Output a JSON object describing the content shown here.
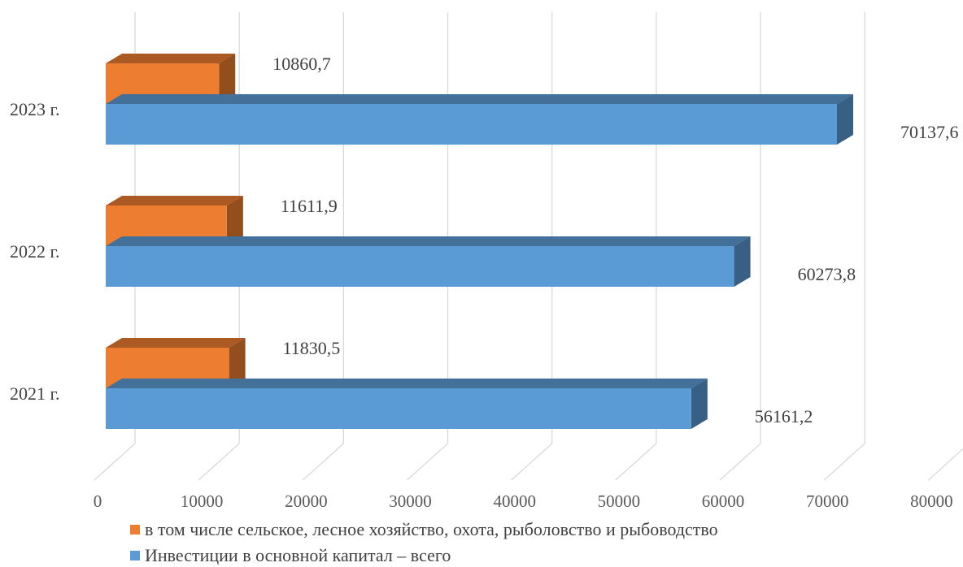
{
  "chart_data": {
    "type": "bar",
    "orientation": "horizontal",
    "style": "3d-clustered",
    "categories": [
      "2021 г.",
      "2022 г.",
      "2023 г."
    ],
    "series": [
      {
        "name": "в том числе сельское, лесное хозяйство, охота, рыболовство и рыбоводство",
        "values": [
          11830.5,
          11611.9,
          10860.7
        ],
        "labels": [
          "11830,5",
          "11611,9",
          "10860,7"
        ],
        "color": "#ED7D31"
      },
      {
        "name": "Инвестиции в основной капитал – всего",
        "values": [
          56161.2,
          60273.8,
          70137.6
        ],
        "labels": [
          "56161,2",
          "60273,8",
          "70137,6"
        ],
        "color": "#5B9BD5"
      }
    ],
    "x_ticks": [
      "0",
      "10000",
      "20000",
      "30000",
      "40000",
      "50000",
      "60000",
      "70000",
      "80000"
    ],
    "xlim": [
      0,
      80000
    ],
    "grid": true,
    "legend_position": "bottom"
  }
}
